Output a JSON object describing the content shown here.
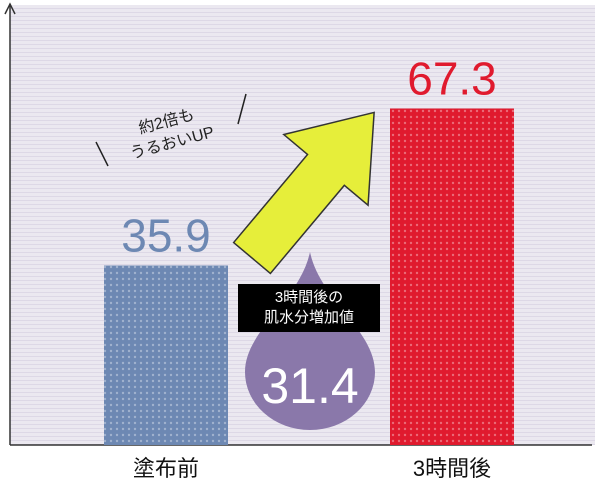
{
  "chart_data": {
    "type": "bar",
    "categories": [
      "塗布前",
      "3時間後"
    ],
    "values": [
      35.9,
      67.3
    ],
    "colors": [
      "#6d88b3",
      "#e01a2e"
    ],
    "ylim": [
      0,
      88
    ],
    "annotations": {
      "callout": [
        "約2倍も",
        "うるおいUP"
      ],
      "increase_label": [
        "3時間後の",
        "肌水分増加値"
      ],
      "increase_value": 31.4
    }
  }
}
